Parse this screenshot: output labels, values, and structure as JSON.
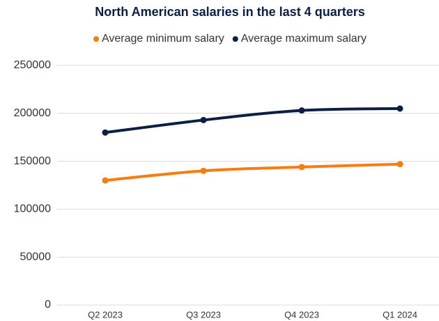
{
  "chart_data": {
    "type": "line",
    "title": "North American salaries in the last 4 quarters",
    "categories": [
      "Q2 2023",
      "Q3 2023",
      "Q4 2023",
      "Q1 2024"
    ],
    "series": [
      {
        "name": "Average minimum salary",
        "color": "#fa7b0f",
        "values": [
          130000,
          140000,
          144000,
          147000
        ]
      },
      {
        "name": "Average maximum salary",
        "color": "#0b1f45",
        "values": [
          180000,
          193000,
          203000,
          205000
        ]
      }
    ],
    "ylim": [
      0,
      250000
    ],
    "yticks": [
      0,
      50000,
      100000,
      150000,
      200000,
      250000
    ],
    "grid": true
  }
}
